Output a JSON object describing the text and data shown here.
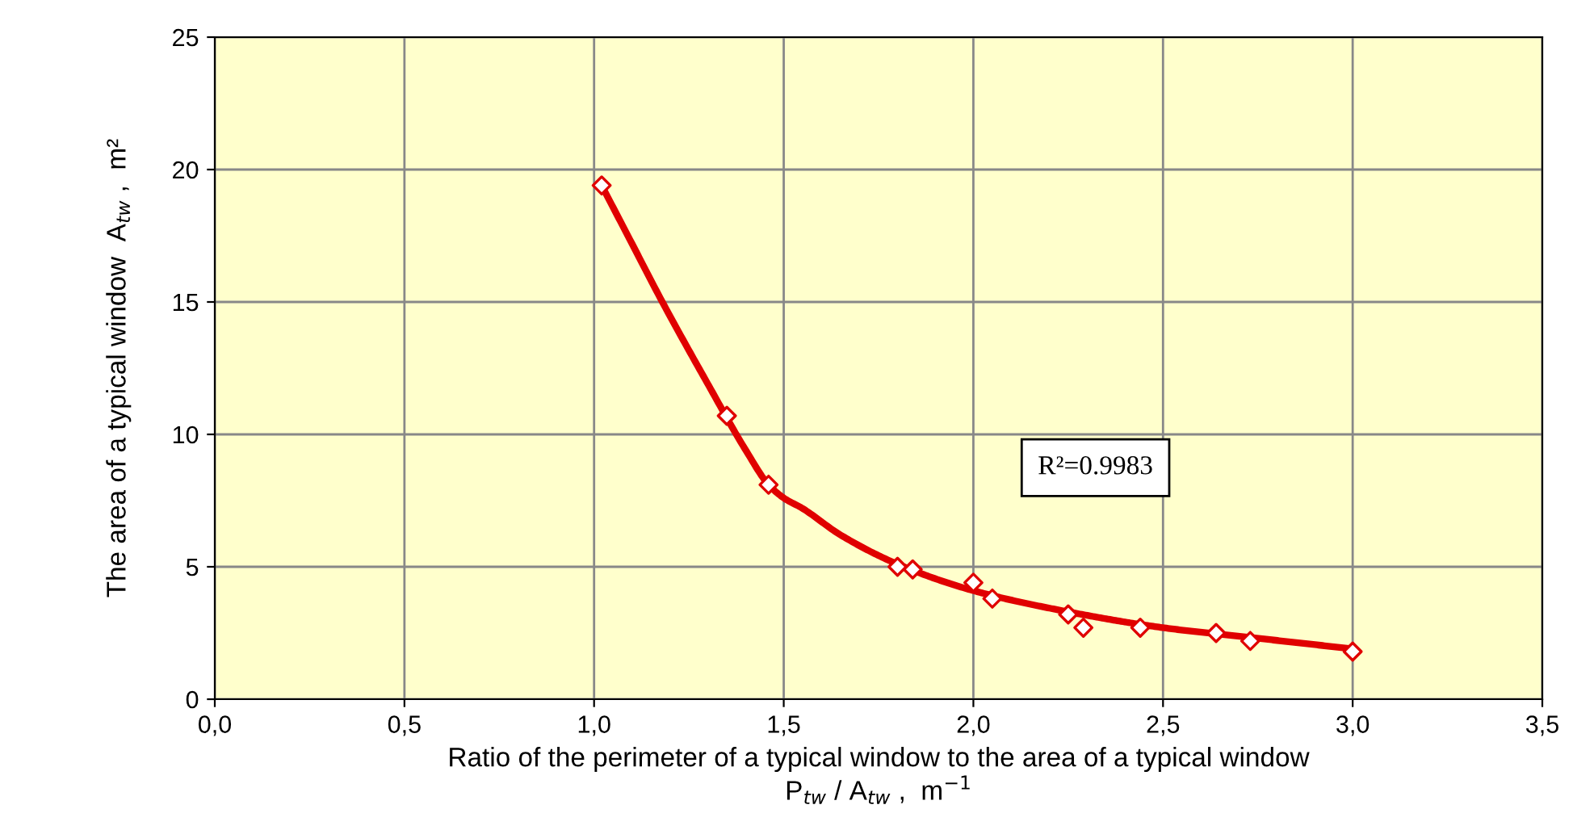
{
  "chart_data": {
    "type": "scatter",
    "xlabel": "Ratio of the perimeter of a typical window to the area of a typical window\nP$_{tw}$ / A$_{tw}$ ,  m$^{−1}$",
    "ylabel": "The area of a typical window  A$_{tw}$ ,  m²",
    "annotations": [
      "R²=0.9983"
    ],
    "series": [
      {
        "color": "#e00000",
        "marker": "diamond",
        "x": [
          1.02,
          1.35,
          1.46,
          1.8,
          1.84,
          2.0,
          2.05,
          2.25,
          2.29,
          2.44,
          2.64,
          2.73,
          3.0
        ],
        "values": [
          19.4,
          10.7,
          8.1,
          5.0,
          4.9,
          4.4,
          3.8,
          3.2,
          2.7,
          2.7,
          2.5,
          2.2,
          1.8
        ]
      },
      {
        "type": "line",
        "color": "#e00000",
        "marker": "none",
        "line_style": "solid",
        "x": [
          1.02,
          1.1,
          1.18,
          1.3,
          1.4,
          1.46,
          1.5,
          1.55,
          1.65,
          1.8,
          2.0,
          2.25,
          2.5,
          2.75,
          3.0
        ],
        "values": [
          19.4,
          17.2,
          15.0,
          11.9,
          9.4,
          8.1,
          7.6,
          7.2,
          6.2,
          5.1,
          4.1,
          3.3,
          2.7,
          2.3,
          1.9
        ]
      }
    ],
    "xlim": [
      0,
      3.5
    ],
    "ylim": [
      0,
      25
    ],
    "xticks": [
      {
        "value": 0,
        "label": "0,0"
      },
      {
        "value": 0.5,
        "label": "0,5"
      },
      {
        "value": 1,
        "label": "1,0"
      },
      {
        "value": 1.5,
        "label": "1,5"
      },
      {
        "value": 2,
        "label": "2,0"
      },
      {
        "value": 2.5,
        "label": "2,5"
      },
      {
        "value": 3,
        "label": "3,0"
      },
      {
        "value": 3.5,
        "label": "3,5"
      }
    ],
    "yticks": [
      0,
      5,
      10,
      15,
      20,
      25
    ],
    "grid": true
  }
}
